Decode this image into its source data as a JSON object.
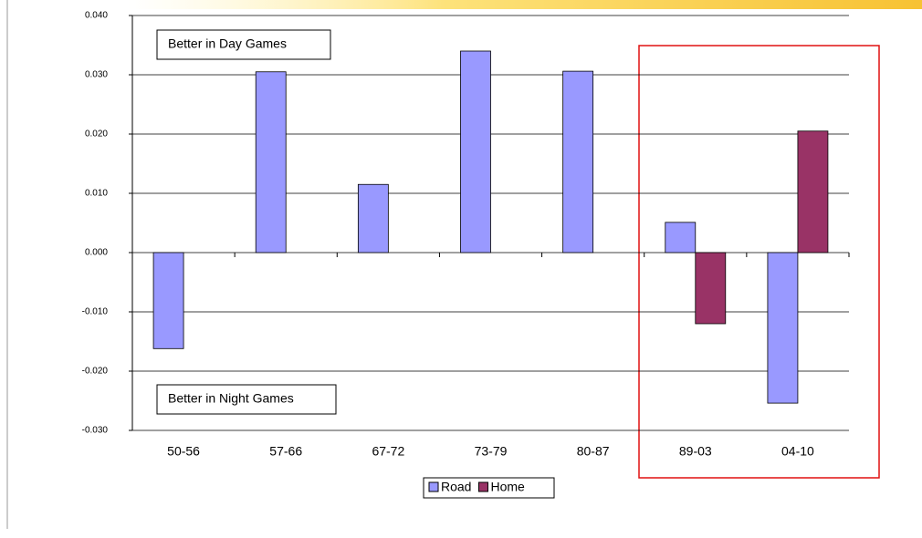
{
  "chart_data": {
    "type": "bar",
    "categories": [
      "50-56",
      "57-66",
      "67-72",
      "73-79",
      "80-87",
      "89-03",
      "04-10"
    ],
    "series": [
      {
        "name": "Road",
        "color": "#9999ff",
        "values": [
          -0.0162,
          0.0305,
          0.0115,
          0.034,
          0.0306,
          0.0051,
          -0.0254
        ]
      },
      {
        "name": "Home",
        "color": "#993366",
        "values": [
          null,
          null,
          null,
          null,
          null,
          -0.012,
          0.0205
        ]
      }
    ],
    "ylim": [
      -0.03,
      0.04
    ],
    "yticks": [
      {
        "value": -0.03,
        "label": "-0.030"
      },
      {
        "value": -0.02,
        "label": "-0.020"
      },
      {
        "value": -0.01,
        "label": "-0.010"
      },
      {
        "value": 0,
        "label": "0.000"
      },
      {
        "value": 0.01,
        "label": "0.010"
      },
      {
        "value": 0.02,
        "label": "0.020"
      },
      {
        "value": 0.03,
        "label": "0.030"
      },
      {
        "value": 0.04,
        "label": "0.040"
      }
    ],
    "grid": true,
    "legend": "bottom",
    "annotations": [
      "Better in Day Games",
      "Better in Night Games"
    ]
  }
}
